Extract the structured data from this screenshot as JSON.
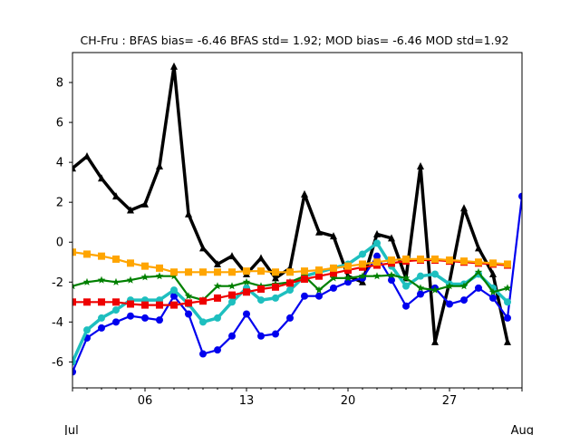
{
  "chart_data": {
    "type": "line",
    "title": "CH-Fru   : BFAS bias= -6.46 BFAS std= 1.92; MOD bias= -6.46 MOD std=1.92",
    "xlabel": "",
    "ylabel": "",
    "xlim": [
      1,
      32
    ],
    "ylim": [
      -7.3,
      9.5
    ],
    "grid": false,
    "x_tick_labels": [
      {
        "x": 6,
        "label": "06"
      },
      {
        "x": 13,
        "label": "13"
      },
      {
        "x": 20,
        "label": "20"
      },
      {
        "x": 27,
        "label": "27"
      }
    ],
    "x_sub_labels": [
      {
        "x": 1,
        "label": "Jul"
      },
      {
        "x": 32,
        "label": "Aug"
      }
    ],
    "y_ticks": [
      -6,
      -4,
      -2,
      0,
      2,
      4,
      6,
      8
    ],
    "series": [
      {
        "color": "#000000",
        "marker": "triangle",
        "width": 3.5,
        "x": [
          1,
          2,
          3,
          4,
          5,
          6,
          7,
          8,
          9,
          10,
          11,
          12,
          13,
          14,
          15,
          16,
          17,
          18,
          19,
          20,
          21,
          22,
          23,
          24,
          25,
          26,
          27,
          28,
          29,
          30,
          31
        ],
        "values": [
          3.7,
          4.3,
          3.2,
          2.3,
          1.6,
          1.9,
          3.8,
          8.8,
          1.4,
          -0.3,
          -1.1,
          -0.7,
          -1.6,
          -0.8,
          -1.8,
          -1.3,
          2.4,
          0.5,
          0.3,
          -1.7,
          -2.0,
          0.4,
          0.2,
          -1.8,
          3.8,
          -5.0,
          -2.0,
          1.7,
          -0.3,
          -1.6,
          -5.0
        ]
      },
      {
        "color": "#0000ee",
        "marker": "circle",
        "width": 2.2,
        "x": [
          1,
          2,
          3,
          4,
          5,
          6,
          7,
          8,
          9,
          10,
          11,
          12,
          13,
          14,
          15,
          16,
          17,
          18,
          19,
          20,
          21,
          22,
          23,
          24,
          25,
          26,
          27,
          28,
          29,
          30,
          31,
          32
        ],
        "values": [
          -6.5,
          -4.8,
          -4.3,
          -4.0,
          -3.7,
          -3.8,
          -3.9,
          -2.7,
          -3.6,
          -5.6,
          -5.4,
          -4.7,
          -3.6,
          -4.7,
          -4.6,
          -3.8,
          -2.7,
          -2.7,
          -2.3,
          -2.0,
          -1.8,
          -0.7,
          -1.9,
          -3.2,
          -2.6,
          -2.3,
          -3.1,
          -2.9,
          -2.3,
          -2.8,
          -3.8,
          2.3
        ]
      },
      {
        "color": "#1ebfbf",
        "marker": "circle",
        "width": 3.5,
        "x": [
          1,
          2,
          3,
          4,
          5,
          6,
          7,
          8,
          9,
          10,
          11,
          12,
          13,
          14,
          15,
          16,
          17,
          18,
          19,
          20,
          21,
          22,
          23,
          24,
          25,
          26,
          27,
          28,
          29,
          30,
          31
        ],
        "values": [
          -6.0,
          -4.4,
          -3.8,
          -3.4,
          -2.9,
          -2.9,
          -2.9,
          -2.4,
          -3.1,
          -4.0,
          -3.8,
          -3.0,
          -2.3,
          -2.9,
          -2.8,
          -2.4,
          -1.7,
          -1.5,
          -1.3,
          -1.1,
          -0.6,
          -0.05,
          -1.2,
          -2.2,
          -1.7,
          -1.6,
          -2.1,
          -2.1,
          -1.6,
          -2.3,
          -3.0
        ]
      },
      {
        "color": "#008000",
        "marker": "star",
        "width": 2.2,
        "x": [
          1,
          2,
          3,
          4,
          5,
          6,
          7,
          8,
          9,
          10,
          11,
          12,
          13,
          14,
          15,
          16,
          17,
          18,
          19,
          20,
          21,
          22,
          23,
          24,
          25,
          26,
          27,
          28,
          29,
          30,
          31
        ],
        "values": [
          -2.2,
          -2.0,
          -1.9,
          -2.0,
          -1.9,
          -1.75,
          -1.7,
          -1.7,
          -2.7,
          -2.9,
          -2.2,
          -2.2,
          -2.0,
          -2.2,
          -2.1,
          -2.0,
          -1.7,
          -2.4,
          -1.8,
          -1.8,
          -1.7,
          -1.7,
          -1.65,
          -1.8,
          -2.3,
          -2.4,
          -2.2,
          -2.2,
          -1.5,
          -2.5,
          -2.3
        ]
      },
      {
        "color": "#ee0000",
        "marker": "square",
        "width": 2.2,
        "x": [
          1,
          2,
          3,
          4,
          5,
          6,
          7,
          8,
          9,
          10,
          11,
          12,
          13,
          14,
          15,
          16,
          17,
          18,
          19,
          20,
          21,
          22,
          23,
          24,
          25,
          26,
          27,
          28,
          29,
          30,
          31
        ],
        "values": [
          -3.0,
          -3.0,
          -3.0,
          -3.0,
          -3.1,
          -3.15,
          -3.15,
          -3.15,
          -3.05,
          -2.95,
          -2.8,
          -2.65,
          -2.5,
          -2.35,
          -2.25,
          -2.05,
          -1.85,
          -1.7,
          -1.55,
          -1.4,
          -1.25,
          -1.15,
          -1.05,
          -0.95,
          -0.9,
          -0.9,
          -0.95,
          -1.0,
          -1.05,
          -1.1,
          -1.15
        ]
      },
      {
        "color": "#ffa500",
        "marker": "square",
        "width": 2.2,
        "x": [
          1,
          2,
          3,
          4,
          5,
          6,
          7,
          8,
          9,
          10,
          11,
          12,
          13,
          14,
          15,
          16,
          17,
          18,
          19,
          20,
          21,
          22,
          23,
          24,
          25,
          26,
          27,
          28,
          29,
          30,
          31
        ],
        "values": [
          -0.5,
          -0.6,
          -0.7,
          -0.85,
          -1.05,
          -1.2,
          -1.3,
          -1.5,
          -1.5,
          -1.5,
          -1.5,
          -1.5,
          -1.45,
          -1.45,
          -1.5,
          -1.5,
          -1.45,
          -1.4,
          -1.3,
          -1.2,
          -1.1,
          -1.0,
          -0.9,
          -0.85,
          -0.85,
          -0.85,
          -0.9,
          -0.95,
          -1.0,
          -1.05,
          -1.1
        ]
      }
    ]
  }
}
